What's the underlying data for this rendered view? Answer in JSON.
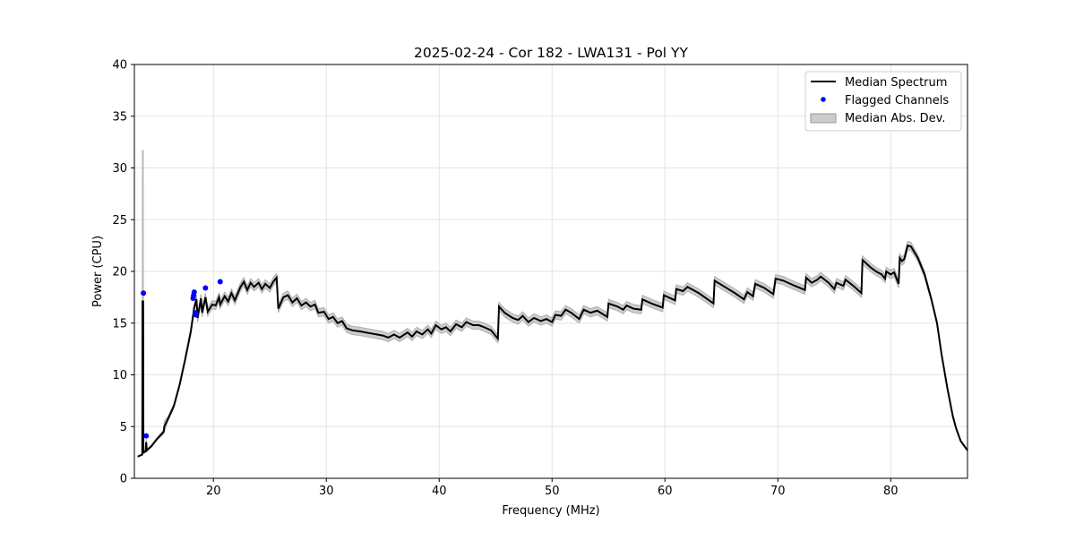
{
  "chart_data": {
    "type": "line",
    "title": "2025-02-24 - Cor 182 - LWA131 - Pol YY",
    "xlabel": "Frequency (MHz)",
    "ylabel": "Power (CPU)",
    "xlim": [
      13.0,
      86.8
    ],
    "ylim": [
      0,
      40
    ],
    "xticks": [
      20,
      30,
      40,
      50,
      60,
      70,
      80
    ],
    "yticks": [
      0,
      5,
      10,
      15,
      20,
      25,
      30,
      35,
      40
    ],
    "grid": true,
    "legend_position": "top-right",
    "legend": [
      "Median Spectrum",
      "Flagged Channels",
      "Median Abs. Dev."
    ],
    "colors": {
      "median": "#000000",
      "flagged": "#0000ff",
      "mad": "#b0b0b0"
    },
    "median_spectrum": [
      [
        13.3,
        2.1,
        0.05
      ],
      [
        13.7,
        2.3,
        0.05
      ],
      [
        13.72,
        17.1,
        14.6
      ],
      [
        13.78,
        17.1,
        14.6
      ],
      [
        13.8,
        2.5,
        0.1
      ],
      [
        14.0,
        2.6,
        0.1
      ],
      [
        14.05,
        3.5,
        0.3
      ],
      [
        14.1,
        2.7,
        0.1
      ],
      [
        14.5,
        3.1,
        0.1
      ],
      [
        15.0,
        3.8,
        0.1
      ],
      [
        15.6,
        4.5,
        0.2
      ],
      [
        15.65,
        5.0,
        0.5
      ],
      [
        16.0,
        5.8,
        0.2
      ],
      [
        16.5,
        7.0,
        0.2
      ],
      [
        17.0,
        9.0,
        0.2
      ],
      [
        17.5,
        11.5,
        0.2
      ],
      [
        18.0,
        14.2,
        0.3
      ],
      [
        18.3,
        16.5,
        0.3
      ],
      [
        18.5,
        17.3,
        0.4
      ],
      [
        18.6,
        15.5,
        0.4
      ],
      [
        18.9,
        17.4,
        0.4
      ],
      [
        19.0,
        16.0,
        0.4
      ],
      [
        19.3,
        17.5,
        0.4
      ],
      [
        19.5,
        16.1,
        0.4
      ],
      [
        19.9,
        16.8,
        0.4
      ],
      [
        20.2,
        16.7,
        0.4
      ],
      [
        20.5,
        17.5,
        0.4
      ],
      [
        20.6,
        16.8,
        0.4
      ],
      [
        21.0,
        17.6,
        0.4
      ],
      [
        21.3,
        17.1,
        0.4
      ],
      [
        21.6,
        17.9,
        0.4
      ],
      [
        21.9,
        17.2,
        0.4
      ],
      [
        22.4,
        18.5,
        0.4
      ],
      [
        22.7,
        19.0,
        0.4
      ],
      [
        23.0,
        18.2,
        0.4
      ],
      [
        23.3,
        18.9,
        0.4
      ],
      [
        23.6,
        18.5,
        0.4
      ],
      [
        24.0,
        18.9,
        0.4
      ],
      [
        24.3,
        18.3,
        0.4
      ],
      [
        24.6,
        18.8,
        0.4
      ],
      [
        25.0,
        18.4,
        0.4
      ],
      [
        25.3,
        19.0,
        0.4
      ],
      [
        25.6,
        19.4,
        0.4
      ],
      [
        25.75,
        16.4,
        0.4
      ],
      [
        26.2,
        17.5,
        0.4
      ],
      [
        26.6,
        17.7,
        0.4
      ],
      [
        27.0,
        17.0,
        0.4
      ],
      [
        27.4,
        17.4,
        0.4
      ],
      [
        27.8,
        16.7,
        0.4
      ],
      [
        28.2,
        17.0,
        0.4
      ],
      [
        28.6,
        16.6,
        0.4
      ],
      [
        29.0,
        16.8,
        0.4
      ],
      [
        29.3,
        16.0,
        0.4
      ],
      [
        29.8,
        16.1,
        0.4
      ],
      [
        30.2,
        15.4,
        0.4
      ],
      [
        30.6,
        15.6,
        0.4
      ],
      [
        31.0,
        15.0,
        0.4
      ],
      [
        31.4,
        15.2,
        0.4
      ],
      [
        31.8,
        14.5,
        0.4
      ],
      [
        32.3,
        14.3,
        0.4
      ],
      [
        33.0,
        14.2,
        0.4
      ],
      [
        34.0,
        14.0,
        0.4
      ],
      [
        35.0,
        13.8,
        0.4
      ],
      [
        35.5,
        13.6,
        0.4
      ],
      [
        36.0,
        13.9,
        0.4
      ],
      [
        36.5,
        13.6,
        0.4
      ],
      [
        37.2,
        14.1,
        0.4
      ],
      [
        37.6,
        13.7,
        0.4
      ],
      [
        38.0,
        14.2,
        0.4
      ],
      [
        38.5,
        13.9,
        0.4
      ],
      [
        39.0,
        14.4,
        0.4
      ],
      [
        39.3,
        14.0,
        0.4
      ],
      [
        39.7,
        14.8,
        0.4
      ],
      [
        40.2,
        14.4,
        0.4
      ],
      [
        40.6,
        14.6,
        0.4
      ],
      [
        41.0,
        14.2,
        0.4
      ],
      [
        41.5,
        14.9,
        0.4
      ],
      [
        42.0,
        14.6,
        0.4
      ],
      [
        42.4,
        15.1,
        0.4
      ],
      [
        43.0,
        14.8,
        0.4
      ],
      [
        43.5,
        14.8,
        0.4
      ],
      [
        44.0,
        14.6,
        0.4
      ],
      [
        44.6,
        14.3,
        0.4
      ],
      [
        45.2,
        13.5,
        0.4
      ],
      [
        45.3,
        16.6,
        0.4
      ],
      [
        45.8,
        16.0,
        0.4
      ],
      [
        46.5,
        15.5,
        0.4
      ],
      [
        47.0,
        15.3,
        0.4
      ],
      [
        47.4,
        15.7,
        0.4
      ],
      [
        47.9,
        15.1,
        0.4
      ],
      [
        48.4,
        15.5,
        0.4
      ],
      [
        49.0,
        15.2,
        0.4
      ],
      [
        49.5,
        15.4,
        0.4
      ],
      [
        50.0,
        15.1,
        0.4
      ],
      [
        50.3,
        15.8,
        0.4
      ],
      [
        50.8,
        15.7,
        0.4
      ],
      [
        51.2,
        16.3,
        0.4
      ],
      [
        51.7,
        16.0,
        0.4
      ],
      [
        52.4,
        15.4,
        0.4
      ],
      [
        52.8,
        16.3,
        0.4
      ],
      [
        53.4,
        16.0,
        0.4
      ],
      [
        54.0,
        16.2,
        0.4
      ],
      [
        54.9,
        15.6,
        0.4
      ],
      [
        55.0,
        16.9,
        0.4
      ],
      [
        55.8,
        16.6,
        0.4
      ],
      [
        56.3,
        16.3,
        0.4
      ],
      [
        56.6,
        16.7,
        0.4
      ],
      [
        57.2,
        16.4,
        0.4
      ],
      [
        57.9,
        16.3,
        0.4
      ],
      [
        58.0,
        17.3,
        0.4
      ],
      [
        58.8,
        16.9,
        0.4
      ],
      [
        59.8,
        16.5,
        0.4
      ],
      [
        59.9,
        17.7,
        0.4
      ],
      [
        60.5,
        17.4,
        0.4
      ],
      [
        60.9,
        17.2,
        0.4
      ],
      [
        61.0,
        18.3,
        0.4
      ],
      [
        61.6,
        18.1,
        0.4
      ],
      [
        62.0,
        18.5,
        0.4
      ],
      [
        63.0,
        17.9,
        0.4
      ],
      [
        64.3,
        16.9,
        0.4
      ],
      [
        64.4,
        19.1,
        0.4
      ],
      [
        65.3,
        18.5,
        0.4
      ],
      [
        66.2,
        17.9,
        0.4
      ],
      [
        67.0,
        17.3,
        0.4
      ],
      [
        67.3,
        18.0,
        0.4
      ],
      [
        67.8,
        17.6,
        0.4
      ],
      [
        68.0,
        18.8,
        0.4
      ],
      [
        68.8,
        18.4,
        0.4
      ],
      [
        69.6,
        17.8,
        0.4
      ],
      [
        69.8,
        19.3,
        0.4
      ],
      [
        70.5,
        19.1,
        0.4
      ],
      [
        71.3,
        18.7,
        0.4
      ],
      [
        72.4,
        18.2,
        0.4
      ],
      [
        72.5,
        19.4,
        0.4
      ],
      [
        73.0,
        18.9,
        0.4
      ],
      [
        73.5,
        19.2,
        0.4
      ],
      [
        73.8,
        19.5,
        0.4
      ],
      [
        74.5,
        18.9,
        0.4
      ],
      [
        75.0,
        18.3,
        0.4
      ],
      [
        75.2,
        18.9,
        0.4
      ],
      [
        75.8,
        18.6,
        0.4
      ],
      [
        76.0,
        19.2,
        0.4
      ],
      [
        76.8,
        18.5,
        0.4
      ],
      [
        77.4,
        17.9,
        0.4
      ],
      [
        77.5,
        21.1,
        0.4
      ],
      [
        78.2,
        20.4,
        0.4
      ],
      [
        78.7,
        20.0,
        0.4
      ],
      [
        79.2,
        19.7,
        0.4
      ],
      [
        79.5,
        19.3,
        0.4
      ],
      [
        79.6,
        20.0,
        0.4
      ],
      [
        80.0,
        19.7,
        0.4
      ],
      [
        80.3,
        19.9,
        0.4
      ],
      [
        80.7,
        18.8,
        0.4
      ],
      [
        80.8,
        21.3,
        0.4
      ],
      [
        81.0,
        21.0,
        0.4
      ],
      [
        81.2,
        21.2,
        0.4
      ],
      [
        81.5,
        22.5,
        0.4
      ],
      [
        81.8,
        22.4,
        0.4
      ],
      [
        82.4,
        21.3,
        0.3
      ],
      [
        83.0,
        19.7,
        0.3
      ],
      [
        83.6,
        17.3,
        0.2
      ],
      [
        84.1,
        15.0,
        0.2
      ],
      [
        84.5,
        12.0,
        0.2
      ],
      [
        85.0,
        8.8,
        0.2
      ],
      [
        85.5,
        6.0,
        0.2
      ],
      [
        85.8,
        4.8,
        0.1
      ],
      [
        86.2,
        3.6,
        0.1
      ],
      [
        86.8,
        2.7,
        0.1
      ]
    ],
    "flagged_channels": [
      [
        13.8,
        17.9
      ],
      [
        14.05,
        4.1
      ],
      [
        18.3,
        18.0
      ],
      [
        18.25,
        17.7
      ],
      [
        18.2,
        17.4
      ],
      [
        18.4,
        16.0
      ],
      [
        18.45,
        15.8
      ],
      [
        19.3,
        18.4
      ],
      [
        20.6,
        19.0
      ]
    ]
  }
}
